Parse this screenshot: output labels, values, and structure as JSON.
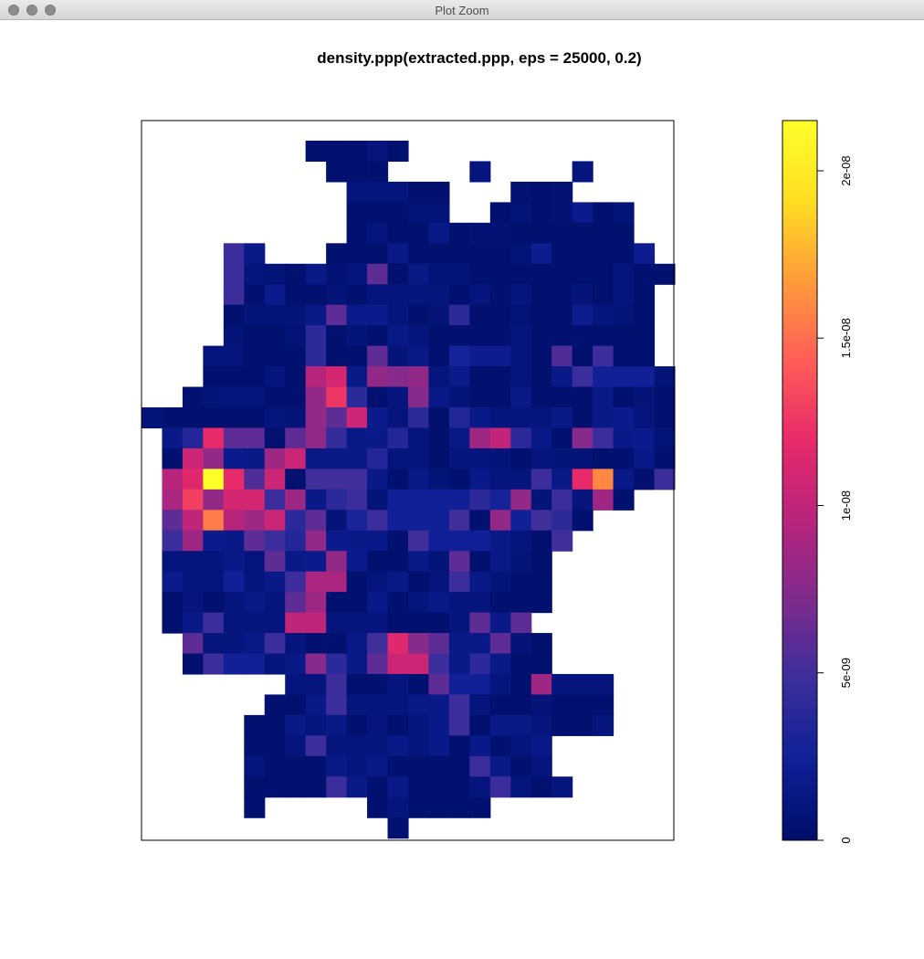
{
  "window": {
    "title": "Plot Zoom",
    "controls": [
      "close",
      "minimize",
      "zoom"
    ]
  },
  "chart_data": {
    "type": "heatmap",
    "title": "density.ppp(extracted.ppp, eps = 25000, 0.2)",
    "axes": "none",
    "colormap": {
      "name": "plasma-like",
      "stops": [
        "#000E6B",
        "#0F1F96",
        "#3A2E9C",
        "#7E2B8D",
        "#B8247C",
        "#E8296A",
        "#FF5D58",
        "#FF9B3A",
        "#FFDE22",
        "#FFFF2A"
      ],
      "zlim": [
        0,
        2.15e-08
      ]
    },
    "colorbar": {
      "position": "right",
      "ticks": [
        {
          "value": 0,
          "label": "0"
        },
        {
          "value": 5e-09,
          "label": "5e-09"
        },
        {
          "value": 1e-08,
          "label": "1e-08"
        },
        {
          "value": 1.5e-08,
          "label": "1.5e-08"
        },
        {
          "value": 2e-08,
          "label": "2e-08"
        }
      ]
    },
    "grid_cols": 26,
    "grid_rows": 34,
    "cell_size_m": 25000,
    "rows": [
      [
        "",
        "",
        "",
        "",
        "",
        "",
        "",
        "",
        0.2,
        0.2,
        0.2,
        1.0,
        0.3,
        "",
        "",
        "",
        "",
        "",
        "",
        "",
        "",
        "",
        "",
        "",
        "",
        ""
      ],
      [
        "",
        "",
        "",
        "",
        "",
        "",
        "",
        "",
        "",
        0.2,
        0.2,
        0.3,
        "",
        "",
        "",
        "",
        1.0,
        "",
        "",
        "",
        "",
        1.0,
        "",
        "",
        "",
        ""
      ],
      [
        "",
        "",
        "",
        "",
        "",
        "",
        "",
        "",
        "",
        "",
        1.0,
        1.0,
        1.0,
        0.3,
        0.3,
        "",
        "",
        "",
        0.4,
        0.3,
        0.4,
        "",
        "",
        "",
        "",
        ""
      ],
      [
        "",
        "",
        "",
        "",
        "",
        "",
        "",
        "",
        "",
        "",
        0.3,
        0.3,
        0.3,
        0.7,
        0.7,
        "",
        "",
        0.3,
        0.8,
        0.3,
        0.5,
        1.8,
        0.3,
        0.8,
        "",
        ""
      ],
      [
        "",
        "",
        "",
        "",
        "",
        "",
        "",
        "",
        "",
        "",
        0.3,
        1.0,
        0.3,
        0.3,
        1.6,
        0.3,
        0.5,
        0.5,
        0.3,
        0.3,
        0.3,
        0.3,
        0.3,
        0.3,
        "",
        ""
      ],
      [
        "",
        "",
        "",
        "",
        "4.8",
        "1.6",
        "",
        "",
        "",
        0.3,
        0.3,
        0.3,
        1.6,
        0.3,
        0.3,
        0.3,
        0.3,
        0.3,
        0.7,
        2.0,
        0.3,
        0.3,
        0.3,
        0.3,
        2.0,
        ""
      ],
      [
        "",
        "",
        "",
        "",
        4.8,
        1.0,
        0.7,
        0.3,
        1.6,
        0.5,
        1.0,
        6.0,
        0.3,
        1.5,
        0.8,
        0.8,
        0.3,
        0.3,
        0.3,
        0.3,
        0.3,
        0.3,
        0.3,
        1.0,
        0.3,
        0.3
      ],
      [
        "",
        "",
        "",
        "",
        4.8,
        0.3,
        1.8,
        0.3,
        0.3,
        0.7,
        0.3,
        1.0,
        1.0,
        1.0,
        1.0,
        0.3,
        1.0,
        0.3,
        1.0,
        0.3,
        0.3,
        0.8,
        0.3,
        1.0,
        0.3,
        ""
      ],
      [
        "",
        "",
        "",
        "",
        0.3,
        0.8,
        0.8,
        0.8,
        1.6,
        6.0,
        1.8,
        1.8,
        1.0,
        0.3,
        0.8,
        4.0,
        0.3,
        0.3,
        0.7,
        0.3,
        0.3,
        2.0,
        1.0,
        0.8,
        0.3,
        ""
      ],
      [
        "",
        "",
        "",
        "",
        0.8,
        0.3,
        0.3,
        0.7,
        4.0,
        0.3,
        0.8,
        0.3,
        1.6,
        1.0,
        0.3,
        0.3,
        0.3,
        0.3,
        1.0,
        0.3,
        0.3,
        0.3,
        0.3,
        0.3,
        0.3,
        ""
      ],
      [
        "",
        "",
        "",
        1.0,
        1.0,
        0.3,
        0.3,
        0.3,
        4.0,
        0.3,
        0.3,
        6.0,
        0.8,
        1.6,
        0.3,
        2.8,
        2.0,
        2.0,
        1.0,
        0.3,
        5.5,
        0.3,
        4.8,
        0.3,
        0.3,
        ""
      ],
      [
        "",
        "",
        "",
        0.3,
        0.3,
        0.3,
        1.0,
        0.3,
        9.5,
        11.0,
        1.6,
        8.0,
        7.5,
        8.0,
        1.0,
        1.8,
        0.3,
        0.3,
        1.0,
        0.3,
        1.6,
        4.8,
        2.5,
        2.5,
        2.5,
        0.8
      ],
      [
        "",
        "",
        0.3,
        0.8,
        1.0,
        1.0,
        0.3,
        0.3,
        8.0,
        12.5,
        4.0,
        0.3,
        1.0,
        7.5,
        1.6,
        0.8,
        0.3,
        0.3,
        1.6,
        0.3,
        0.3,
        0.3,
        1.6,
        0.3,
        0.8,
        0.3
      ],
      [
        0.8,
        0.3,
        0.3,
        0.3,
        0.3,
        0.3,
        1.0,
        0.8,
        8.0,
        6.0,
        10.5,
        1.8,
        1.0,
        4.0,
        0.3,
        3.5,
        1.6,
        1.0,
        1.0,
        1.0,
        1.6,
        0.3,
        1.6,
        1.8,
        1.0,
        0.3
      ],
      [
        "",
        1.6,
        3.5,
        12.0,
        6.0,
        6.0,
        0.3,
        6.0,
        8.0,
        4.5,
        1.6,
        1.6,
        3.5,
        1.0,
        0.3,
        1.6,
        8.5,
        10.0,
        4.0,
        1.6,
        0.3,
        7.5,
        4.8,
        1.6,
        1.8,
        0.7
      ],
      [
        "",
        0.3,
        10.5,
        8.0,
        1.8,
        1.6,
        8.5,
        10.5,
        1.6,
        1.6,
        1.6,
        3.5,
        1.0,
        1.0,
        0.3,
        1.0,
        1.0,
        0.8,
        0.3,
        1.0,
        0.8,
        0.8,
        0.3,
        0.3,
        1.6,
        0.3
      ],
      [
        "",
        9.5,
        11.5,
        21.5,
        12.0,
        5.5,
        10.5,
        0.3,
        5.0,
        5.0,
        5.0,
        1.6,
        0.3,
        1.6,
        0.8,
        0.3,
        1.6,
        1.0,
        1.0,
        4.8,
        1.6,
        12.0,
        16.0,
        1.6,
        0.3,
        4.8
      ],
      [
        "",
        9.0,
        13.0,
        8.0,
        11.0,
        11.0,
        4.8,
        8.5,
        1.6,
        4.0,
        4.8,
        0.8,
        2.5,
        2.5,
        2.5,
        2.5,
        4.0,
        2.8,
        8.0,
        0.8,
        4.8,
        1.0,
        8.5,
        0.3,
        "",
        ""
      ],
      [
        "",
        6.0,
        10.0,
        15.5,
        9.5,
        8.5,
        10.5,
        4.0,
        6.0,
        0.8,
        3.0,
        4.8,
        2.5,
        2.5,
        2.5,
        5.0,
        0.3,
        8.0,
        2.5,
        5.0,
        4.0,
        0.3,
        "",
        "",
        "",
        ""
      ],
      [
        "",
        4.8,
        8.5,
        1.8,
        1.6,
        6.0,
        4.8,
        3.5,
        8.0,
        1.8,
        1.6,
        1.6,
        0.3,
        5.0,
        2.5,
        2.5,
        2.5,
        1.6,
        1.0,
        0.3,
        5.0,
        "",
        "",
        "",
        "",
        ""
      ],
      [
        "",
        1.0,
        1.0,
        1.0,
        1.6,
        1.0,
        6.0,
        1.6,
        1.8,
        8.0,
        1.8,
        0.3,
        0.3,
        1.6,
        0.8,
        6.0,
        0.3,
        1.6,
        0.8,
        0.3,
        "",
        "",
        "",
        "",
        "",
        ""
      ],
      [
        "",
        1.8,
        1.0,
        1.0,
        2.5,
        1.0,
        1.6,
        4.8,
        9.0,
        9.0,
        0.3,
        1.0,
        1.6,
        0.3,
        1.0,
        4.8,
        1.6,
        0.8,
        0.3,
        0.3,
        "",
        "",
        "",
        "",
        "",
        ""
      ],
      [
        "",
        0.3,
        1.0,
        0.3,
        1.0,
        1.6,
        1.0,
        6.0,
        8.5,
        0.3,
        0.3,
        1.6,
        0.3,
        1.0,
        1.6,
        1.0,
        1.0,
        0.3,
        0.3,
        0.3,
        "",
        "",
        "",
        "",
        "",
        ""
      ],
      [
        "",
        0.3,
        1.6,
        4.8,
        1.0,
        1.0,
        1.0,
        10.0,
        10.0,
        1.0,
        1.0,
        1.0,
        0.3,
        0.3,
        0.3,
        1.0,
        6.0,
        1.6,
        6.0,
        "",
        "",
        "",
        "",
        "",
        "",
        ""
      ],
      [
        "",
        "",
        6.0,
        1.0,
        1.0,
        1.6,
        4.8,
        1.0,
        0.3,
        0.3,
        1.6,
        5.0,
        11.5,
        7.5,
        6.0,
        1.6,
        1.6,
        6.0,
        0.8,
        0.3,
        "",
        "",
        "",
        "",
        "",
        ""
      ],
      [
        "",
        "",
        0.3,
        4.8,
        2.5,
        2.5,
        1.0,
        1.6,
        7.5,
        4.0,
        1.6,
        6.0,
        10.5,
        10.5,
        4.8,
        1.6,
        4.0,
        1.6,
        0.3,
        0.3,
        "",
        "",
        "",
        "",
        "",
        ""
      ],
      [
        "",
        "",
        "",
        "",
        "",
        "",
        "",
        1.0,
        1.0,
        4.8,
        0.3,
        0.3,
        1.0,
        0.3,
        6.0,
        2.5,
        2.5,
        1.0,
        0.3,
        8.5,
        1.0,
        1.0,
        1.0,
        "",
        "",
        ""
      ],
      [
        "",
        "",
        "",
        "",
        "",
        "",
        0.3,
        0.3,
        1.6,
        4.8,
        1.0,
        1.0,
        1.0,
        1.6,
        1.6,
        4.8,
        1.0,
        0.3,
        0.3,
        0.8,
        0.3,
        0.3,
        0.3,
        "",
        "",
        ""
      ],
      [
        "",
        "",
        "",
        "",
        "",
        0.3,
        0.3,
        1.6,
        1.0,
        1.6,
        0.3,
        1.0,
        0.3,
        1.0,
        1.6,
        4.8,
        0.3,
        1.6,
        1.6,
        1.0,
        0.3,
        0.3,
        1.0,
        "",
        "",
        ""
      ],
      [
        "",
        "",
        "",
        "",
        "",
        0.3,
        0.3,
        1.0,
        4.8,
        1.0,
        1.0,
        1.0,
        1.6,
        1.0,
        1.6,
        0.3,
        1.6,
        0.3,
        1.0,
        1.6,
        "",
        "",
        "",
        "",
        "",
        ""
      ],
      [
        "",
        "",
        "",
        "",
        "",
        1.0,
        0.3,
        0.3,
        0.3,
        1.6,
        1.0,
        1.6,
        0.3,
        0.3,
        0.3,
        0.3,
        4.8,
        1.6,
        0.3,
        1.0,
        "",
        "",
        "",
        "",
        "",
        ""
      ],
      [
        "",
        "",
        "",
        "",
        "",
        0.3,
        0.3,
        0.3,
        0.3,
        4.8,
        1.6,
        0.3,
        1.6,
        0.3,
        0.3,
        0.3,
        1.0,
        4.8,
        1.0,
        0.3,
        1.0,
        "",
        "",
        "",
        "",
        ""
      ],
      [
        "",
        "",
        "",
        "",
        "",
        0.3,
        "",
        "",
        "",
        "",
        "",
        0.3,
        1.0,
        0.3,
        0.3,
        0.3,
        0.3,
        "",
        "",
        "",
        "",
        "",
        "",
        "",
        "",
        ""
      ],
      [
        "",
        "",
        "",
        "",
        "",
        "",
        "",
        "",
        "",
        "",
        "",
        "",
        0.3,
        "",
        "",
        "",
        "",
        "",
        "",
        "",
        "",
        "",
        "",
        "",
        "",
        ""
      ]
    ],
    "value_unit": "1e-09"
  }
}
